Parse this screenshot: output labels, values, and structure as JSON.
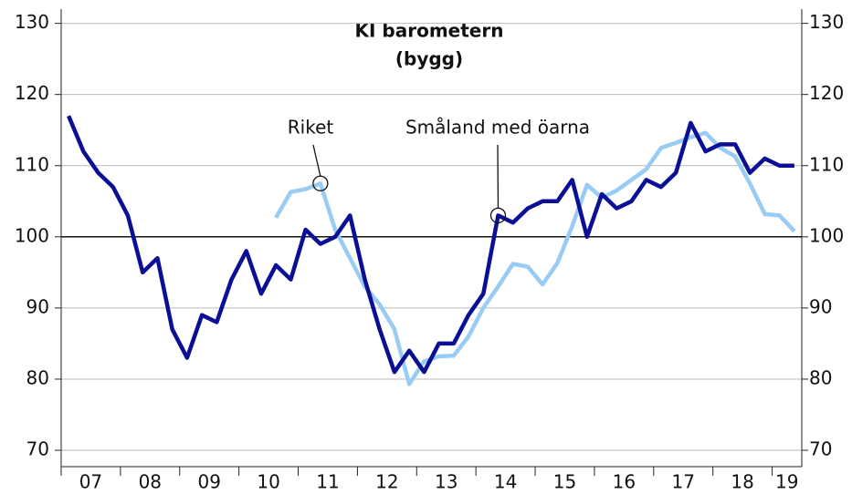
{
  "chart_data": {
    "type": "line",
    "title": "KI barometern",
    "subtitle": "(bygg)",
    "x": [
      2007.125,
      2007.375,
      2007.625,
      2007.875,
      2008.125,
      2008.375,
      2008.625,
      2008.875,
      2009.125,
      2009.375,
      2009.625,
      2009.875,
      2010.125,
      2010.375,
      2010.625,
      2010.875,
      2011.125,
      2011.375,
      2011.625,
      2011.875,
      2012.125,
      2012.375,
      2012.625,
      2012.875,
      2013.125,
      2013.375,
      2013.625,
      2013.875,
      2014.125,
      2014.375,
      2014.625,
      2014.875,
      2015.125,
      2015.375,
      2015.625,
      2015.875,
      2016.125,
      2016.375,
      2016.625,
      2016.875,
      2017.125,
      2017.375,
      2017.625,
      2017.875,
      2018.125,
      2018.375,
      2018.625,
      2018.875,
      2019.125,
      2019.375
    ],
    "series": [
      {
        "name": "Småland med öarna",
        "color": "#0a0f96",
        "values": [
          117,
          112,
          109,
          107,
          103,
          95,
          97,
          87,
          83,
          89,
          88,
          94,
          98,
          92,
          96,
          94,
          101,
          99,
          100,
          103,
          94,
          87,
          81,
          84,
          81,
          85,
          85,
          89,
          92,
          103,
          102,
          104,
          105,
          105,
          108,
          100,
          106,
          104,
          105,
          108,
          107,
          109,
          116,
          112,
          113,
          113,
          109,
          111,
          110,
          110
        ]
      },
      {
        "name": "Riket",
        "color": "#99ccf5",
        "values": [
          null,
          null,
          null,
          null,
          null,
          null,
          null,
          null,
          null,
          null,
          null,
          null,
          null,
          null,
          102.7,
          106.3,
          106.7,
          107.5,
          101,
          97,
          93,
          90.5,
          87,
          79.3,
          82.5,
          83.2,
          83.3,
          86,
          90,
          93,
          96.2,
          95.8,
          93.3,
          96.3,
          101.5,
          107.3,
          105.5,
          106.5,
          108,
          109.5,
          112.5,
          113.2,
          114,
          114.6,
          112.5,
          111.3,
          107.5,
          103.2,
          103,
          100.8
        ]
      }
    ],
    "annotations": [
      {
        "text": "Riket",
        "x": 2011.375,
        "y": 107.5
      },
      {
        "text": "Småland med öarna",
        "x": 2014.375,
        "y": 103
      }
    ],
    "xlim": [
      2007,
      2019.5
    ],
    "xtick_marks": [
      2007,
      2008,
      2009,
      2010,
      2011,
      2012,
      2013,
      2014,
      2015,
      2016,
      2017,
      2018,
      2019
    ],
    "xticks": [
      {
        "value": 2007.5,
        "label": "07"
      },
      {
        "value": 2008.5,
        "label": "08"
      },
      {
        "value": 2009.5,
        "label": "09"
      },
      {
        "value": 2010.5,
        "label": "10"
      },
      {
        "value": 2011.5,
        "label": "11"
      },
      {
        "value": 2012.5,
        "label": "12"
      },
      {
        "value": 2013.5,
        "label": "13"
      },
      {
        "value": 2014.5,
        "label": "14"
      },
      {
        "value": 2015.5,
        "label": "15"
      },
      {
        "value": 2016.5,
        "label": "16"
      },
      {
        "value": 2017.5,
        "label": "17"
      },
      {
        "value": 2018.5,
        "label": "18"
      },
      {
        "value": 2019.25,
        "label": "19"
      }
    ],
    "ylim": [
      67.7,
      132
    ],
    "yticks": [
      70,
      80,
      90,
      100,
      110,
      120,
      130
    ],
    "y2lim": [
      67.7,
      132
    ],
    "y2ticks": [
      70,
      80,
      90,
      100,
      110,
      120,
      130
    ],
    "reference_line": 100,
    "grid": true
  }
}
